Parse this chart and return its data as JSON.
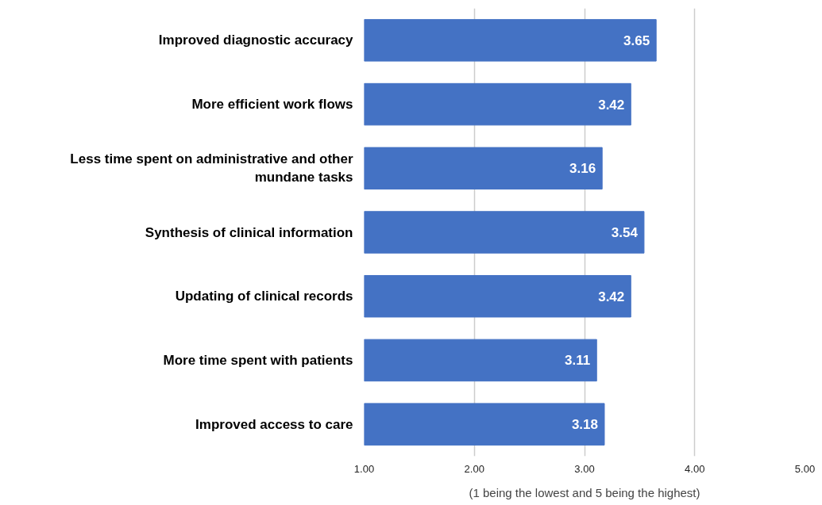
{
  "chart_data": {
    "type": "bar",
    "orientation": "horizontal",
    "xlabel": "(1 being the lowest and 5 being the highest)",
    "categories": [
      "Improved diagnostic accuracy",
      "More efficient work flows",
      "Less time spent on administrative and other mundane tasks",
      "Synthesis of clinical information",
      "Updating of clinical records",
      "More time spent with patients",
      "Improved access to care"
    ],
    "values": [
      3.65,
      3.42,
      3.16,
      3.54,
      3.42,
      3.11,
      3.18
    ],
    "color": "#4472c4",
    "xlim": [
      1,
      5
    ],
    "xticks": [
      {
        "value": 1,
        "label": "1.00"
      },
      {
        "value": 2,
        "label": "2.00"
      },
      {
        "value": 3,
        "label": "3.00"
      },
      {
        "value": 4,
        "label": "4.00"
      },
      {
        "value": 5,
        "label": "5.00"
      }
    ],
    "grid": "x",
    "data_labels": true
  }
}
